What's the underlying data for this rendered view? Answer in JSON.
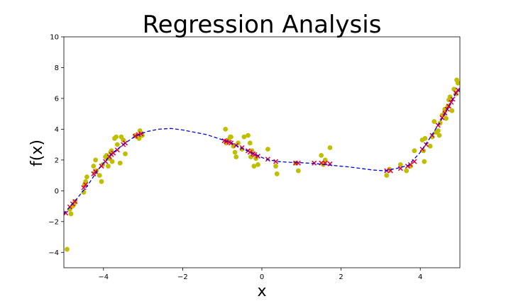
{
  "chart_data": {
    "type": "scatter",
    "title": "Regression Analysis",
    "xlabel": "x",
    "ylabel": "f(x)",
    "xlim": [
      -5,
      5
    ],
    "ylim": [
      -5,
      10
    ],
    "xticks": [
      -4,
      -2,
      0,
      2,
      4
    ],
    "yticks": [
      -4,
      -2,
      0,
      2,
      4,
      6,
      8,
      10
    ],
    "grid": false,
    "colors": {
      "observed": "#bfbf00",
      "predicted": "#e8003a",
      "fit": "#0000e0"
    },
    "series": [
      {
        "kind": "scatter-dots",
        "x": [
          -4.92,
          -4.85,
          -4.82,
          -4.78,
          -4.75,
          -4.72,
          -4.5,
          -4.48,
          -4.45,
          -4.42,
          -4.25,
          -4.22,
          -4.2,
          -4.18,
          -4.1,
          -4.05,
          -4.02,
          -3.95,
          -3.92,
          -3.88,
          -3.85,
          -3.82,
          -3.8,
          -3.78,
          -3.72,
          -3.68,
          -3.65,
          -3.58,
          -3.55,
          -3.5,
          -3.45,
          -3.2,
          -3.15,
          -3.1,
          -3.08,
          -3.05,
          -3.02,
          -0.92,
          -0.9,
          -0.85,
          -0.8,
          -0.78,
          -0.72,
          -0.68,
          -0.65,
          -0.6,
          -0.5,
          -0.45,
          -0.35,
          -0.3,
          -0.28,
          -0.25,
          -0.2,
          -0.15,
          -0.1,
          0.15,
          0.35,
          0.38,
          0.85,
          0.92,
          1.5,
          1.55,
          1.6,
          1.72,
          3.15,
          3.22,
          3.5,
          3.65,
          3.75,
          3.85,
          4.05,
          4.08,
          4.1,
          4.12,
          4.25,
          4.3,
          4.35,
          4.4,
          4.45,
          4.48,
          4.5,
          4.55,
          4.6,
          4.62,
          4.65,
          4.7,
          4.72,
          4.75,
          4.8,
          4.85,
          4.9,
          4.92,
          4.95
        ],
        "y": [
          -3.8,
          -1.2,
          -1.5,
          -1.0,
          -0.9,
          -0.7,
          -0.1,
          0.4,
          0.6,
          0.9,
          1.6,
          1.2,
          2.0,
          1.3,
          1.0,
          0.6,
          1.7,
          2.2,
          2.3,
          1.6,
          2.1,
          2.5,
          2.6,
          1.9,
          3.4,
          3.5,
          3.0,
          1.8,
          3.5,
          3.3,
          2.4,
          3.6,
          3.5,
          3.4,
          3.9,
          3.7,
          3.6,
          4.0,
          3.1,
          3.3,
          3.5,
          3.5,
          2.9,
          2.5,
          2.2,
          3.1,
          2.7,
          3.5,
          3.6,
          3.1,
          2.2,
          2.6,
          1.6,
          2.1,
          1.7,
          2.7,
          1.6,
          1.1,
          1.8,
          1.3,
          2.3,
          1.7,
          2.0,
          2.8,
          1.0,
          1.4,
          1.7,
          1.3,
          1.6,
          2.6,
          3.3,
          2.6,
          1.9,
          3.4,
          2.9,
          3.5,
          4.5,
          3.8,
          3.9,
          3.6,
          4.4,
          4.9,
          5.0,
          5.3,
          4.7,
          5.5,
          5.9,
          6.1,
          5.2,
          6.6,
          6.3,
          7.2,
          7.0
        ]
      },
      {
        "kind": "scatter-x",
        "x": [
          -4.95,
          -4.85,
          -4.78,
          -4.72,
          -4.5,
          -4.45,
          -4.25,
          -4.2,
          -4.05,
          -3.95,
          -3.85,
          -3.8,
          -3.75,
          -3.65,
          -3.5,
          -3.45,
          -3.2,
          -3.12,
          -3.05,
          -0.95,
          -0.9,
          -0.82,
          -0.78,
          -0.65,
          -0.5,
          -0.35,
          -0.3,
          -0.22,
          -0.18,
          -0.1,
          0.15,
          0.35,
          0.85,
          0.92,
          1.32,
          1.5,
          1.6,
          1.72,
          3.15,
          3.25,
          3.5,
          3.68,
          3.75,
          3.85,
          4.05,
          4.15,
          4.3,
          4.45,
          4.55,
          4.62,
          4.68,
          4.72,
          4.78,
          4.82,
          4.9,
          4.95
        ],
        "y": [
          -1.45,
          -1.05,
          -0.85,
          -0.7,
          0.2,
          0.4,
          1.1,
          1.25,
          1.6,
          1.9,
          2.2,
          2.35,
          2.45,
          2.65,
          3.0,
          3.1,
          3.55,
          3.65,
          3.7,
          3.25,
          3.2,
          3.15,
          3.1,
          2.95,
          2.8,
          2.6,
          2.5,
          2.4,
          2.35,
          2.25,
          2.05,
          1.9,
          1.8,
          1.8,
          1.8,
          1.8,
          1.8,
          1.75,
          1.3,
          1.3,
          1.45,
          1.6,
          1.7,
          1.9,
          2.7,
          3.0,
          3.6,
          4.25,
          4.75,
          5.05,
          5.3,
          5.5,
          5.75,
          5.95,
          6.35,
          6.55
        ]
      },
      {
        "kind": "dashed-line",
        "x": [
          -5,
          -4.7,
          -4.4,
          -4.1,
          -3.8,
          -3.5,
          -3.2,
          -2.9,
          -2.6,
          -2.3,
          -2.0,
          -1.7,
          -1.4,
          -1.1,
          -0.8,
          -0.5,
          -0.2,
          0.1,
          0.4,
          0.7,
          1.0,
          1.3,
          1.6,
          1.9,
          2.2,
          2.5,
          2.8,
          3.1,
          3.4,
          3.7,
          4.0,
          4.3,
          4.6,
          4.9,
          5.0
        ],
        "y": [
          -1.5,
          -0.6,
          0.35,
          1.5,
          2.4,
          3.0,
          3.55,
          3.85,
          4.0,
          4.05,
          3.95,
          3.8,
          3.65,
          3.4,
          3.15,
          2.75,
          2.4,
          2.05,
          1.9,
          1.85,
          1.82,
          1.78,
          1.7,
          1.62,
          1.55,
          1.45,
          1.35,
          1.3,
          1.45,
          1.65,
          2.5,
          3.65,
          4.9,
          6.35,
          6.6
        ]
      }
    ]
  }
}
